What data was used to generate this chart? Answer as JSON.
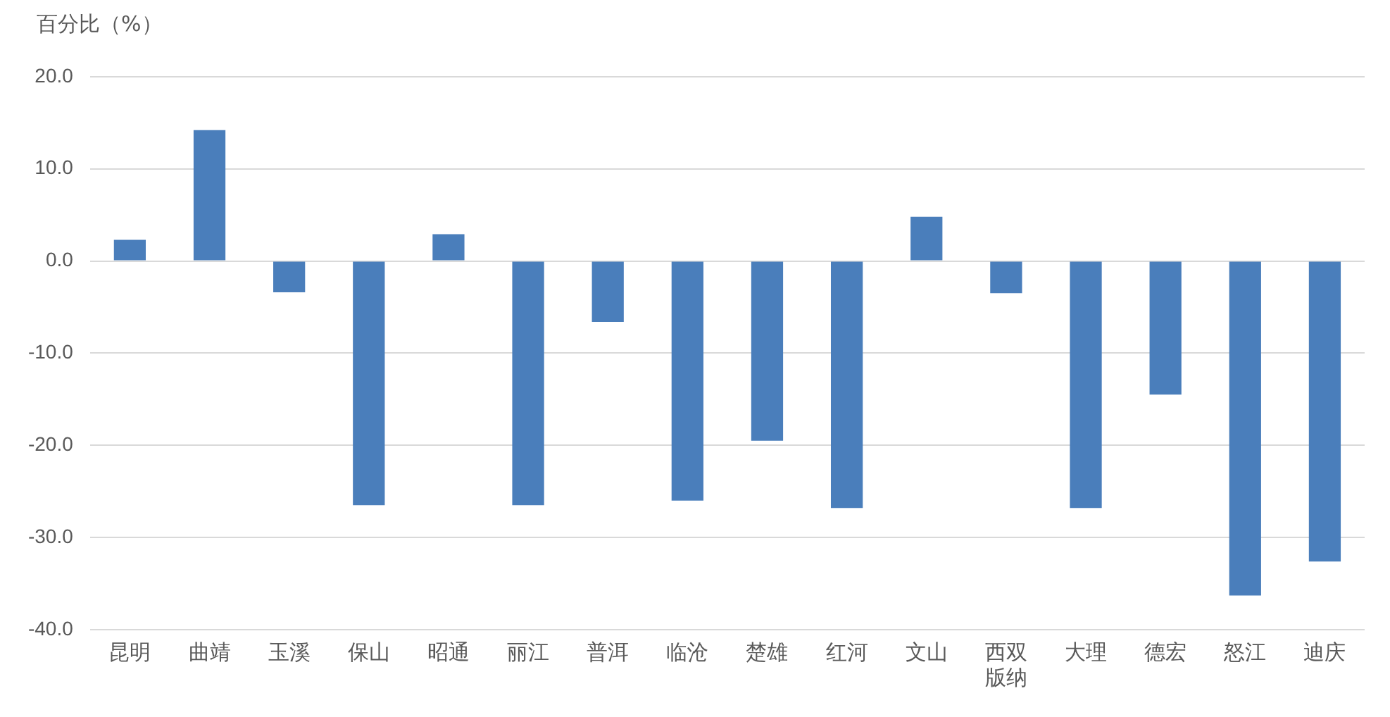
{
  "chart_data": {
    "type": "bar",
    "ylabel": "百分比（%）",
    "categories": [
      "昆明",
      "曲靖",
      "玉溪",
      "保山",
      "昭通",
      "丽江",
      "普洱",
      "临沧",
      "楚雄",
      "红河",
      "文山",
      "西双版纳",
      "大理",
      "德宏",
      "怒江",
      "迪庆"
    ],
    "values": [
      2.3,
      14.2,
      -3.4,
      -26.5,
      2.9,
      -26.5,
      -6.6,
      -26.0,
      -19.5,
      -26.8,
      4.8,
      -3.5,
      -26.8,
      -14.5,
      -36.3,
      -32.6
    ],
    "color": "#4a7ebb",
    "ylim": [
      -40,
      20
    ],
    "yticks": [
      {
        "value": 20,
        "label": "20.0"
      },
      {
        "value": 10,
        "label": "10.0"
      },
      {
        "value": 0,
        "label": "0.0"
      },
      {
        "value": -10,
        "label": "-10.0"
      },
      {
        "value": -20,
        "label": "-20.0"
      },
      {
        "value": -30,
        "label": "-30.0"
      },
      {
        "value": -40,
        "label": "-40.0"
      }
    ],
    "grid": "y"
  }
}
